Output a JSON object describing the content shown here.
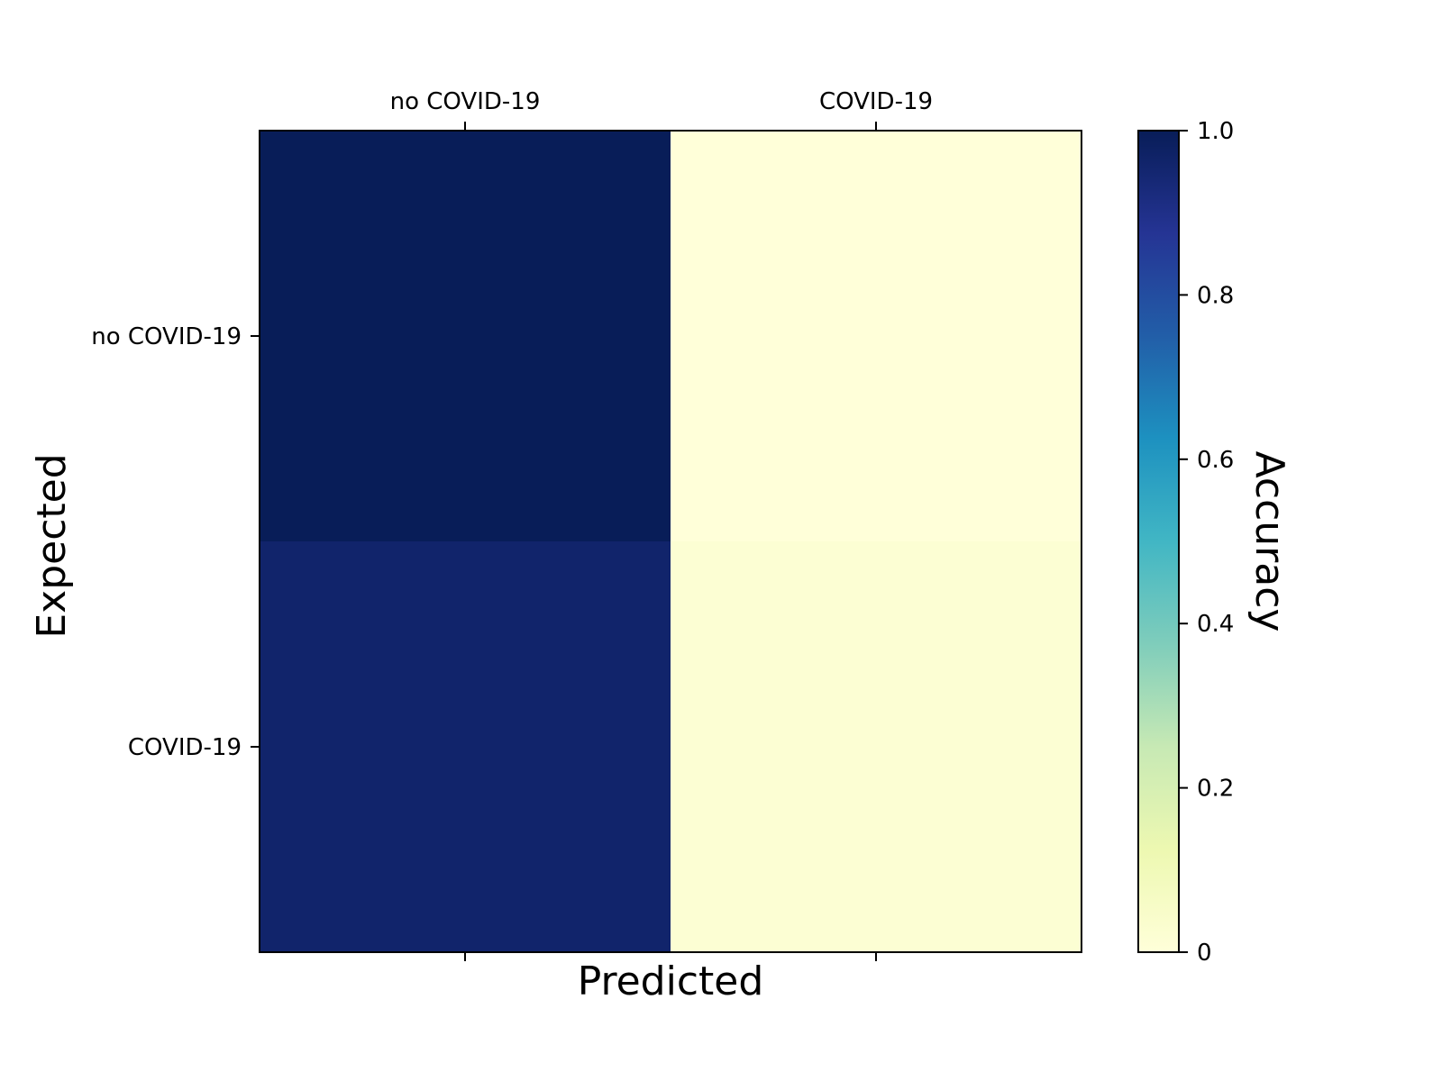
{
  "chart_data": {
    "type": "heatmap",
    "x_categories": [
      "no COVID-19",
      "COVID-19"
    ],
    "y_categories": [
      "no COVID-19",
      "COVID-19"
    ],
    "values": [
      [
        1.0,
        0.0
      ],
      [
        0.96,
        0.02
      ]
    ],
    "xlabel": "Predicted",
    "ylabel": "Expected",
    "colorbar": {
      "label": "Accuracy",
      "range": [
        0,
        1.0
      ],
      "ticks": [
        0,
        0.2,
        0.4,
        0.6,
        0.8,
        1.0
      ],
      "tick_labels": [
        "0",
        "0.2",
        "0.4",
        "0.6",
        "0.8",
        "1.0"
      ]
    },
    "colormap": "YlGnBu",
    "colormap_stops": [
      "#ffffd9",
      "#edf8b1",
      "#c7e9b4",
      "#7fcdbb",
      "#41b6c4",
      "#1d91c0",
      "#225ea8",
      "#253494",
      "#081d58"
    ],
    "x_tick_position": "top",
    "grid": false
  }
}
